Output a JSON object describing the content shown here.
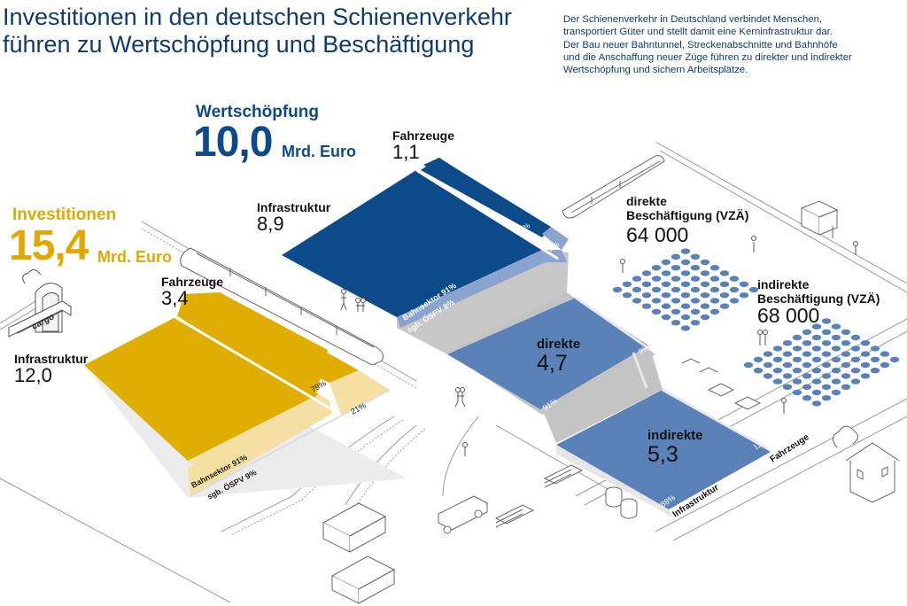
{
  "header": {
    "title_line1": "Investitionen in den deutschen Schienenverkehr",
    "title_line2": "führen zu Wertschöpfung und Beschäftigung",
    "intro_lines": [
      "Der Schienenverkehr in Deutschland verbindet Menschen,",
      "transportiert Güter und stellt damit eine Kerninfrastruktur dar.",
      "Der Bau neuer Bahntunnel, Streckenabschnitte und Bahnhöfe",
      "und die Anschaffung neuer Züge führen zu direkter und indirekter",
      "Wertschöpfung und sichern Arbeitsplätze."
    ]
  },
  "colors": {
    "title": "#0d3c6e",
    "investment": "#e0ae00",
    "investment_light": "#f5dfa3",
    "value_added_dark": "#0d4a8a",
    "value_added_light": "#8aa4cf",
    "value_added_mid": "#5b82b8",
    "side_gray": "#c8c8c8"
  },
  "investitionen": {
    "heading": "Investitionen",
    "total": "15,4",
    "unit": "Mrd. Euro",
    "infrastruktur_label": "Infrastruktur",
    "infrastruktur_value": "12,0",
    "fahrzeuge_label": "Fahrzeuge",
    "fahrzeuge_value": "3,4",
    "bahnsektor_label": "Bahnsektor 91%",
    "oespv_label": "sgb. ÖSPV 9%",
    "fahrzeuge_share_a": "79%",
    "fahrzeuge_share_b": "21%"
  },
  "wertschoepfung": {
    "heading": "Wertschöpfung",
    "total": "10,0",
    "unit": "Mrd. Euro",
    "infrastruktur_label": "Infrastruktur",
    "infrastruktur_value": "8,9",
    "fahrzeuge_label": "Fahrzeuge",
    "fahrzeuge_value": "1,1",
    "bahnsektor_label": "Bahnsektor 91%",
    "oespv_label": "sgb. ÖSPV 9%",
    "fahrzeuge_share_a": "78%",
    "fahrzeuge_share_b": "22%",
    "direkte_label": "direkte",
    "direkte_value": "4,7",
    "direkte_share_infra": "91%",
    "direkte_share_fz": "9%",
    "indirekte_label": "indirekte",
    "indirekte_value": "5,3",
    "indirekte_share_infra": "88%",
    "indirekte_share_fz": "12%",
    "axis_infrastruktur": "Infrastruktur",
    "axis_fahrzeuge": "Fahrzeuge"
  },
  "beschaeftigung": {
    "direkte_label_line1": "direkte",
    "direkte_label_line2": "Beschäftigung (VZÄ)",
    "direkte_value": "64 000",
    "indirekte_label_line1": "indirekte",
    "indirekte_label_line2": "Beschäftigung (VZÄ)",
    "indirekte_value": "68 000"
  },
  "illustration": {
    "cargo_label": "cargo"
  }
}
